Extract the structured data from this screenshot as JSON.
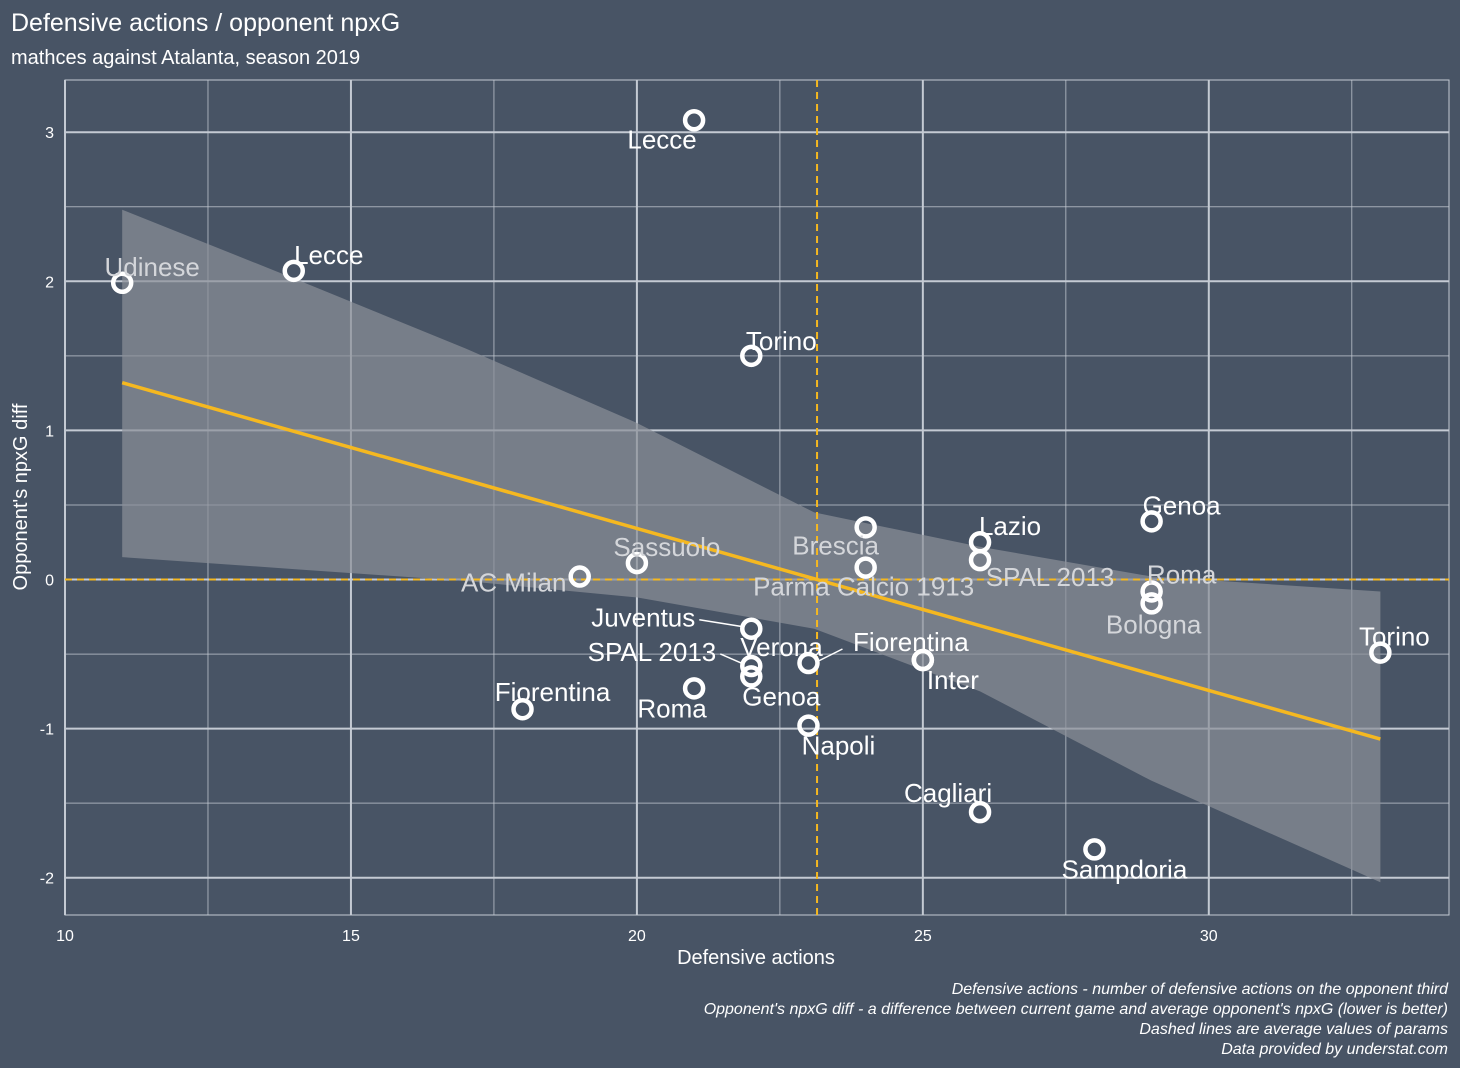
{
  "colors": {
    "background": "#485465",
    "grid": "#c4cad3",
    "text": "#ffffff",
    "trend_line": "#f5b820",
    "mean_line": "#f5b820",
    "ci_band": "#8c9098",
    "point_stroke": "#ffffff",
    "label_in_band": "#d4d6da"
  },
  "chart_data": {
    "type": "scatter",
    "title": "Defensive actions / opponent npxG",
    "subtitle": "mathces against Atalanta, season 2019",
    "xlabel": "Defensive actions",
    "ylabel": "Opponent's npxG diff",
    "xlim": [
      10,
      34.2
    ],
    "ylim": [
      -2.25,
      3.35
    ],
    "x_ticks": [
      10,
      15,
      20,
      25,
      30
    ],
    "y_ticks": [
      -2,
      -1,
      0,
      1,
      2,
      3
    ],
    "x_tick_labels": [
      "10",
      "15",
      "20",
      "25",
      "30"
    ],
    "y_tick_labels": [
      "-2",
      "-1",
      "0",
      "1",
      "2",
      "3"
    ],
    "grid": true,
    "mean_x": 23.15,
    "mean_y": 0.0,
    "trend": {
      "x": [
        11,
        33
      ],
      "y": [
        1.32,
        -1.07
      ]
    },
    "confidence_band": {
      "x": [
        11,
        14,
        17,
        20,
        23.1,
        26,
        29,
        33
      ],
      "upper": [
        2.48,
        2.02,
        1.55,
        1.05,
        0.45,
        0.22,
        0.02,
        -0.08
      ],
      "lower": [
        0.15,
        0.07,
        -0.01,
        -0.12,
        -0.33,
        -0.75,
        -1.35,
        -2.03
      ]
    },
    "points": [
      {
        "x": 21,
        "y": 3.08,
        "label": "Lecce"
      },
      {
        "x": 11,
        "y": 1.99,
        "label": "Udinese"
      },
      {
        "x": 14,
        "y": 2.07,
        "label": "Lecce"
      },
      {
        "x": 22,
        "y": 1.5,
        "label": "Torino"
      },
      {
        "x": 29,
        "y": 0.39,
        "label": "Genoa"
      },
      {
        "x": 26,
        "y": 0.25,
        "label": "Lazio"
      },
      {
        "x": 24,
        "y": 0.35,
        "label": "Brescia"
      },
      {
        "x": 20,
        "y": 0.11,
        "label": "Sassuolo"
      },
      {
        "x": 19,
        "y": 0.02,
        "label": "AC Milan"
      },
      {
        "x": 24,
        "y": 0.08,
        "label": "Parma Calcio 1913"
      },
      {
        "x": 26,
        "y": 0.13,
        "label": "SPAL 2013"
      },
      {
        "x": 29,
        "y": -0.08,
        "label": "Roma"
      },
      {
        "x": 29,
        "y": -0.16,
        "label": "Bologna"
      },
      {
        "x": 33,
        "y": -0.49,
        "label": "Torino"
      },
      {
        "x": 22,
        "y": -0.33,
        "label": "Juventus"
      },
      {
        "x": 22,
        "y": -0.58,
        "label": "SPAL 2013"
      },
      {
        "x": 22,
        "y": -0.65,
        "label": "Genoa"
      },
      {
        "x": 23,
        "y": -0.56,
        "label": "Verona"
      },
      {
        "x": 25,
        "y": -0.54,
        "label": "Fiorentina"
      },
      {
        "x": 25,
        "y": -0.54,
        "label": "Inter"
      },
      {
        "x": 21,
        "y": -0.73,
        "label": "Roma"
      },
      {
        "x": 18,
        "y": -0.87,
        "label": "Fiorentina"
      },
      {
        "x": 23,
        "y": -0.98,
        "label": "Napoli"
      },
      {
        "x": 26,
        "y": -1.56,
        "label": "Cagliari"
      },
      {
        "x": 28,
        "y": -1.81,
        "label": "Sampdoria"
      }
    ],
    "caption": [
      "Defensive actions - number of defensive actions on the opponent third",
      "Opponent's npxG diff - a difference between current game and average opponent's npxG (lower is better)",
      "Dashed lines are average values of params",
      "Data provided by understat.com"
    ]
  }
}
